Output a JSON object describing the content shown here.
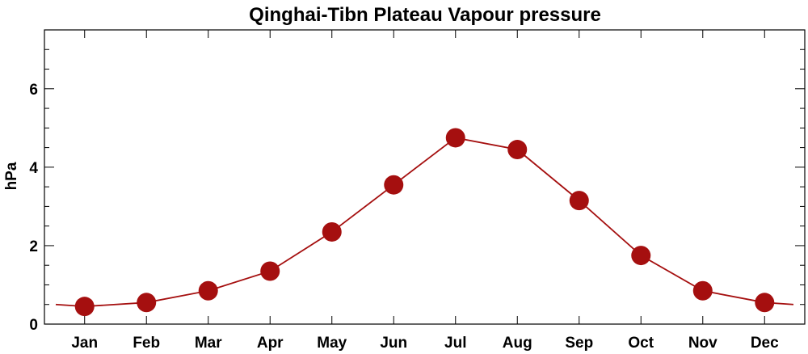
{
  "chart_data": {
    "type": "line",
    "title": "Qinghai-Tibn Plateau Vapour pressure",
    "xlabel": "",
    "ylabel": "hPa",
    "categories": [
      "Jan",
      "Feb",
      "Mar",
      "Apr",
      "May",
      "Jun",
      "Jul",
      "Aug",
      "Sep",
      "Oct",
      "Nov",
      "Dec"
    ],
    "series": [
      {
        "values": [
          0.45,
          0.55,
          0.85,
          1.35,
          2.35,
          3.55,
          4.75,
          4.45,
          3.15,
          1.75,
          0.85,
          0.55
        ],
        "color": "#a50f0f"
      }
    ],
    "ylim": [
      0,
      7.5
    ],
    "yticks": [
      "0",
      "2",
      "4",
      "6"
    ],
    "grid": false,
    "legend": "none"
  }
}
